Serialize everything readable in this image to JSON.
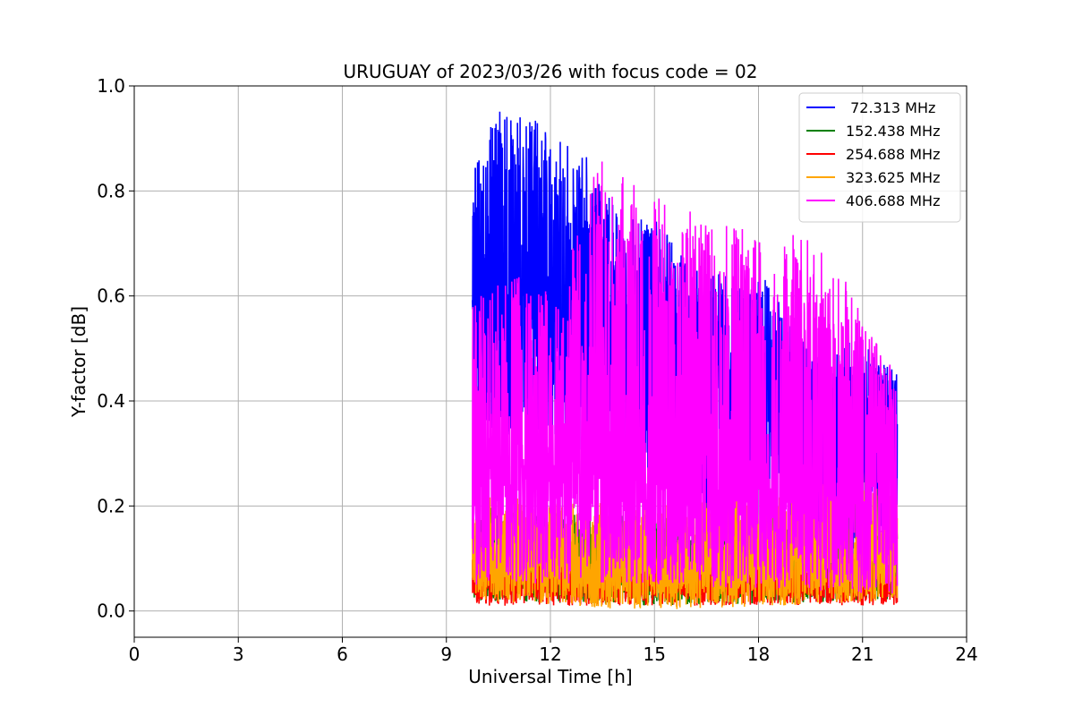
{
  "chart_data": {
    "type": "line",
    "title": "URUGUAY of 2023/03/26 with focus code = 02",
    "xlabel": "Universal Time [h]",
    "ylabel": "Y-factor [dB]",
    "xlim": [
      0,
      24
    ],
    "ylim": [
      -0.05,
      1.0
    ],
    "xticks": [
      0,
      3,
      6,
      9,
      12,
      15,
      18,
      21,
      24
    ],
    "xtick_labels": [
      "0",
      "3",
      "6",
      "9",
      "12",
      "15",
      "18",
      "21",
      "24"
    ],
    "yticks": [
      0.0,
      0.2,
      0.4,
      0.6,
      0.8,
      1.0
    ],
    "ytick_labels": [
      "0.0",
      "0.2",
      "0.4",
      "0.6",
      "0.8",
      "1.0"
    ],
    "grid": true,
    "legend_position": "top-right",
    "time_range": [
      9.75,
      22.0
    ],
    "series": [
      {
        "name": " 72.313 MHz",
        "color": "#0000ff",
        "baseline": [
          [
            9.75,
            0.55
          ],
          [
            12,
            0.55
          ],
          [
            14,
            0.5
          ],
          [
            16,
            0.47
          ],
          [
            18,
            0.42
          ],
          [
            20,
            0.38
          ],
          [
            22,
            0.35
          ]
        ],
        "upper_envelope": [
          [
            9.75,
            0.83
          ],
          [
            10.5,
            0.96
          ],
          [
            11,
            0.95
          ],
          [
            11.5,
            0.95
          ],
          [
            12,
            0.9
          ],
          [
            13,
            0.88
          ],
          [
            14,
            0.75
          ],
          [
            15,
            0.75
          ],
          [
            16,
            0.66
          ],
          [
            17,
            0.65
          ],
          [
            18,
            0.65
          ],
          [
            19,
            0.55
          ],
          [
            20,
            0.5
          ],
          [
            21,
            0.52
          ],
          [
            22,
            0.45
          ]
        ],
        "lower_envelope": [
          [
            9.75,
            0.35
          ],
          [
            12,
            0.3
          ],
          [
            14,
            0.25
          ],
          [
            16,
            0.2
          ],
          [
            18,
            0.15
          ],
          [
            20,
            0.1
          ],
          [
            22,
            0.08
          ]
        ]
      },
      {
        "name": "152.438 MHz",
        "color": "#008000",
        "baseline": [
          [
            9.75,
            0.07
          ],
          [
            15,
            0.07
          ],
          [
            22,
            0.07
          ]
        ],
        "upper_envelope": [
          [
            9.75,
            0.2
          ],
          [
            15,
            0.18
          ],
          [
            22,
            0.15
          ]
        ],
        "lower_envelope": [
          [
            9.75,
            0.02
          ],
          [
            15,
            0.01
          ],
          [
            22,
            0.02
          ]
        ]
      },
      {
        "name": "254.688 MHz",
        "color": "#ff0000",
        "baseline": [
          [
            9.75,
            0.06
          ],
          [
            15,
            0.06
          ],
          [
            22,
            0.06
          ]
        ],
        "upper_envelope": [
          [
            9.75,
            0.1
          ],
          [
            15,
            0.1
          ],
          [
            22,
            0.1
          ]
        ],
        "lower_envelope": [
          [
            9.75,
            0.01
          ],
          [
            15,
            0.01
          ],
          [
            22,
            0.01
          ]
        ]
      },
      {
        "name": "323.625 MHz",
        "color": "#ffa500",
        "baseline": [
          [
            9.75,
            0.09
          ],
          [
            15,
            0.09
          ],
          [
            22,
            0.09
          ]
        ],
        "upper_envelope": [
          [
            9.75,
            0.22
          ],
          [
            15,
            0.2
          ],
          [
            22,
            0.28
          ]
        ],
        "lower_envelope": [
          [
            9.75,
            0.02
          ],
          [
            15,
            0.0
          ],
          [
            22,
            0.02
          ]
        ]
      },
      {
        "name": "406.688 MHz",
        "color": "#ff00ff",
        "baseline": [
          [
            9.75,
            0.25
          ],
          [
            15,
            0.24
          ],
          [
            22,
            0.22
          ]
        ],
        "upper_envelope": [
          [
            9.75,
            0.6
          ],
          [
            11,
            0.64
          ],
          [
            12.3,
            0.6
          ],
          [
            13.3,
            0.87
          ],
          [
            14.5,
            0.81
          ],
          [
            16.8,
            0.74
          ],
          [
            19.3,
            0.72
          ],
          [
            20.8,
            0.61
          ],
          [
            22,
            0.44
          ]
        ],
        "lower_envelope": [
          [
            9.75,
            0.05
          ],
          [
            15,
            0.05
          ],
          [
            22,
            0.03
          ]
        ]
      }
    ]
  }
}
